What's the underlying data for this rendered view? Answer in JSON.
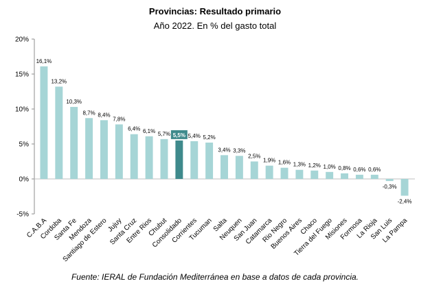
{
  "title": "Provincias: Resultado primario",
  "subtitle": "Año 2022. En % del gasto total",
  "source": "Fuente: IERAL de Fundación Mediterránea en base a datos de cada provincia.",
  "colors": {
    "bar": "#a6d5d6",
    "highlight": "#3f8a8c"
  },
  "chart_data": {
    "type": "bar",
    "title": "Provincias: Resultado primario",
    "subtitle": "Año 2022. En % del gasto total",
    "xlabel": "",
    "ylabel": "",
    "ylim": [
      -5,
      20
    ],
    "yticks": [
      -5,
      0,
      5,
      10,
      15,
      20
    ],
    "ytick_labels": [
      "-5%",
      "0%",
      "5%",
      "10%",
      "15%",
      "20%"
    ],
    "grid": false,
    "legend": "none",
    "highlight_category": "Consolidado",
    "categories": [
      "C.A.B.A",
      "Cordoba",
      "Santa Fe",
      "Mendoza",
      "Santiago de Estero",
      "Jujuy",
      "Santa Cruz",
      "Entre Rios",
      "Chubut",
      "Consolidado",
      "Corrientes",
      "Tucuman",
      "Salta",
      "Neuquen",
      "San Juan",
      "Catamarca",
      "Rio Negro",
      "Buenos Aires",
      "Chaco",
      "Tierra del Fuego",
      "Misiones",
      "Formosa",
      "La Rioja",
      "San Luis",
      "La Pampa"
    ],
    "values": [
      16.1,
      13.2,
      10.3,
      8.7,
      8.4,
      7.8,
      6.4,
      6.1,
      5.7,
      5.5,
      5.4,
      5.2,
      3.4,
      3.3,
      2.5,
      1.9,
      1.6,
      1.3,
      1.2,
      1.0,
      0.8,
      0.6,
      0.6,
      -0.3,
      -2.4
    ],
    "value_labels": [
      "16,1%",
      "13,2%",
      "10,3%",
      "8,7%",
      "8,4%",
      "7,8%",
      "6,4%",
      "6,1%",
      "5,7%",
      "5,5%",
      "5,4%",
      "5,2%",
      "3,4%",
      "3,3%",
      "2,5%",
      "1,9%",
      "1,6%",
      "1,3%",
      "1,2%",
      "1,0%",
      "0,8%",
      "0,6%",
      "0,6%",
      "-0,3%",
      "-2,4%"
    ]
  }
}
